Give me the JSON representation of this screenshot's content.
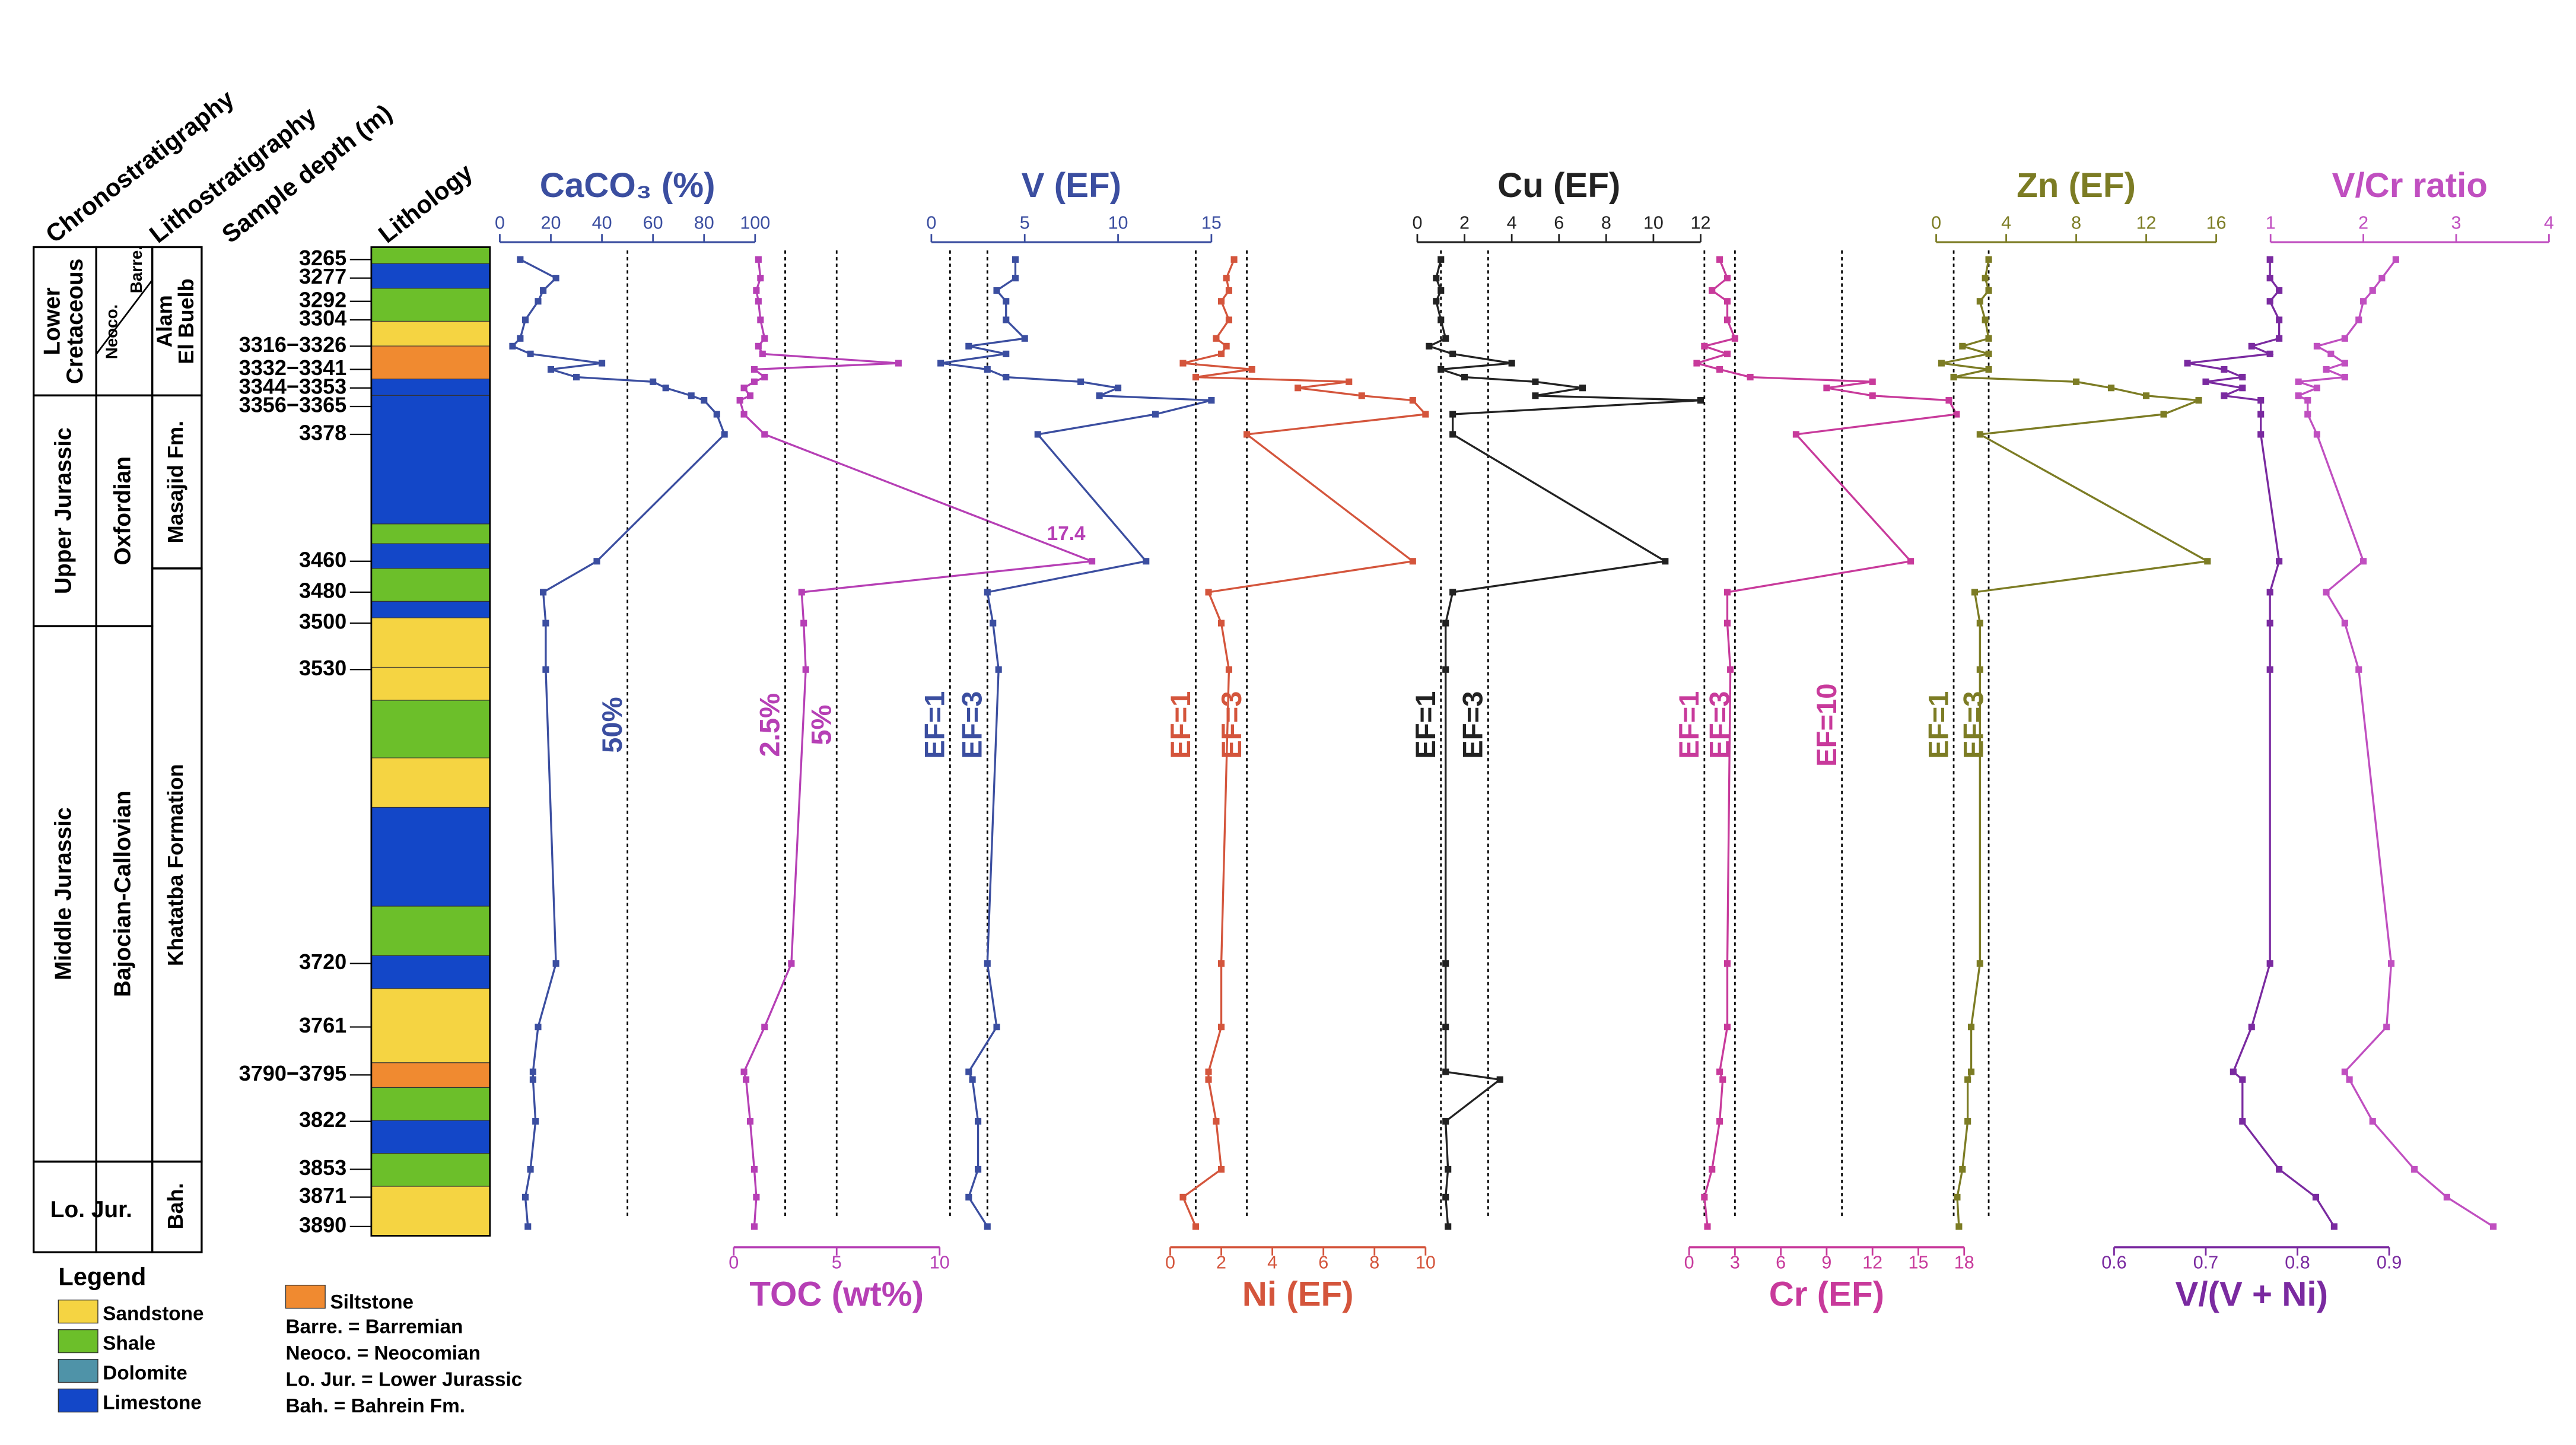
{
  "headers": [
    "Chronostratigraphy",
    "Lithostratigraphy",
    "Sample depth (m)",
    "Lithology"
  ],
  "chronostratigraphy": [
    [
      "Lower",
      "Cretaceous"
    ],
    [
      "Upper Jurassic"
    ],
    [
      "Middle Jurassic"
    ],
    [
      "Lo. Jur."
    ]
  ],
  "stages": [
    "Neoco.",
    "Barre.",
    "Oxfordian",
    "Bajocian-Callovian"
  ],
  "formations": [
    [
      "Alam",
      "El Buelb"
    ],
    [
      "Masajid Fm."
    ],
    [
      "Khatatba Formation"
    ],
    [
      "Bah."
    ]
  ],
  "legend": {
    "title": "Legend",
    "items": [
      "Sandstone",
      "Shale",
      "Dolomite",
      "Limestone",
      "Siltstone"
    ],
    "notes": [
      "Barre. = Barremian",
      "Neoco. = Neocomian",
      "Lo. Jur. = Lower Jurassic",
      "Bah. = Bahrein Fm."
    ]
  },
  "depth": {
    "ylim": [
      3257,
      3897
    ],
    "yticks": [
      3265,
      3277,
      3292,
      3304,
      {
        "value": 3321,
        "label": "3316−3326"
      },
      {
        "value": 3336,
        "label": "3332−3341"
      },
      {
        "value": 3348,
        "label": "3344−3353"
      },
      {
        "value": 3360,
        "label": "3356−3365"
      },
      3378,
      3460,
      3480,
      3500,
      3530,
      3720,
      3761,
      {
        "value": 3792,
        "label": "3790−3795"
      },
      3822,
      3853,
      3871,
      3890
    ],
    "samples": [
      3265,
      3277,
      3285,
      3292,
      3304,
      3316,
      3321,
      3326,
      3332,
      3336,
      3341,
      3344,
      3348,
      3353,
      3356,
      3365,
      3378,
      3460,
      3480,
      3500,
      3530,
      3720,
      3761,
      3790,
      3795,
      3822,
      3853,
      3871,
      3890
    ]
  },
  "chart_data": [
    {
      "type": "line",
      "title": "CaCO₃ (%)",
      "axis": "top",
      "color": "#3b4ea0",
      "xlim": [
        0,
        100
      ],
      "xticks": [
        0,
        20,
        40,
        60,
        80,
        100
      ],
      "refs": [
        {
          "value": 50,
          "label": "50%"
        }
      ],
      "values": [
        8,
        22,
        17,
        15,
        10,
        8,
        5,
        12,
        40,
        20,
        30,
        60,
        65,
        75,
        80,
        85,
        88,
        38,
        17,
        18,
        18,
        22,
        15,
        13,
        13,
        14,
        12,
        10,
        11
      ]
    },
    {
      "type": "line",
      "title": "TOC (wt%)",
      "axis": "bottom",
      "color": "#b63fb5",
      "xlim": [
        0,
        10
      ],
      "xticks": [
        0,
        5,
        10
      ],
      "refs": [
        {
          "value": 2.5,
          "label": "2.5%"
        },
        {
          "value": 5,
          "label": "5%"
        }
      ],
      "values": [
        1.2,
        1.3,
        1.1,
        1.2,
        1.3,
        1.5,
        1.2,
        1.4,
        8,
        1,
        1.5,
        1,
        0.5,
        0.8,
        0.3,
        0.5,
        1.5,
        17.4,
        3.3,
        3.4,
        3.5,
        2.8,
        1.5,
        0.5,
        0.6,
        0.8,
        1,
        1.1,
        1
      ]
    },
    {
      "type": "line",
      "title": "V (EF)",
      "axis": "top",
      "color": "#3b4ea0",
      "xlim": [
        0,
        15
      ],
      "xticks": [
        0,
        5,
        10,
        15
      ],
      "refs": [
        {
          "value": 1,
          "label": "EF=1"
        },
        {
          "value": 3,
          "label": "EF=3"
        }
      ],
      "values": [
        4.5,
        4.5,
        3.5,
        4,
        4,
        5,
        2,
        4,
        0.5,
        3,
        4,
        8,
        10,
        9,
        15,
        12,
        5.7,
        11.5,
        3,
        3.3,
        3.6,
        3,
        3.5,
        2,
        2.2,
        2.5,
        2.5,
        2,
        3
      ]
    },
    {
      "type": "line",
      "title": "Ni (EF)",
      "axis": "bottom",
      "color": "#d4553c",
      "xlim": [
        0,
        10
      ],
      "xticks": [
        0,
        2,
        4,
        6,
        8,
        10
      ],
      "refs": [
        {
          "value": 1,
          "label": "EF=1"
        },
        {
          "value": 3,
          "label": "EF=3"
        }
      ],
      "values": [
        2.5,
        2.2,
        2.3,
        2,
        2.3,
        1.8,
        2.2,
        2,
        0.5,
        3.2,
        1,
        7,
        5,
        7.5,
        9.5,
        10,
        3,
        9.5,
        1.5,
        2,
        2.3,
        2,
        2,
        1.5,
        1.5,
        1.8,
        2,
        0.5,
        1
      ]
    },
    {
      "type": "line",
      "title": "Cu (EF)",
      "axis": "top",
      "color": "#222222",
      "xlim": [
        0,
        12
      ],
      "xticks": [
        0,
        2,
        4,
        6,
        8,
        10,
        12
      ],
      "refs": [
        {
          "value": 1,
          "label": "EF=1"
        },
        {
          "value": 3,
          "label": "EF=3"
        }
      ],
      "values": [
        1,
        0.8,
        1,
        0.8,
        1,
        1.2,
        0.5,
        1.5,
        4,
        1,
        2,
        5,
        7,
        5,
        12,
        1.5,
        1.5,
        10.5,
        1.5,
        1.2,
        1.2,
        1.2,
        1.2,
        1.2,
        3.5,
        1.2,
        1.3,
        1.2,
        1.3
      ]
    },
    {
      "type": "line",
      "title": "Cr (EF)",
      "axis": "bottom",
      "color": "#c83a9b",
      "xlim": [
        0,
        18
      ],
      "xticks": [
        0,
        3,
        6,
        9,
        12,
        15,
        18
      ],
      "refs": [
        {
          "value": 1,
          "label": "EF=1"
        },
        {
          "value": 3,
          "label": "EF=3"
        },
        {
          "value": 10,
          "label": "EF=10"
        }
      ],
      "values": [
        2,
        2.5,
        1.5,
        2.5,
        2.5,
        3,
        1,
        2.5,
        0.5,
        2,
        4,
        12,
        9,
        12,
        17,
        17.5,
        7,
        14.5,
        2.5,
        2.5,
        2.7,
        2.5,
        2.5,
        2,
        2.2,
        2,
        1.5,
        1,
        1.2
      ]
    },
    {
      "type": "line",
      "title": "Zn (EF)",
      "axis": "top",
      "color": "#7c7c24",
      "xlim": [
        0,
        16
      ],
      "xticks": [
        0,
        4,
        8,
        12,
        16
      ],
      "refs": [
        {
          "value": 1,
          "label": "EF=1"
        },
        {
          "value": 3,
          "label": "EF=3"
        }
      ],
      "values": [
        3,
        2.8,
        3,
        2.5,
        2.8,
        3,
        1.5,
        3,
        0.3,
        3,
        1,
        8,
        10,
        12,
        15,
        13,
        2.5,
        15.5,
        2.2,
        2.5,
        2.5,
        2.5,
        2,
        2,
        1.8,
        1.8,
        1.5,
        1.2,
        1.3
      ]
    },
    {
      "type": "line",
      "title": "V/Cr ratio",
      "axis": "top",
      "color": "#c04fc0",
      "xlim": [
        1,
        4
      ],
      "xticks": [
        1,
        2,
        3,
        4
      ],
      "refs": [],
      "values": [
        2.35,
        2.2,
        2.1,
        2,
        1.95,
        1.8,
        1.5,
        1.65,
        1.8,
        1.6,
        1.8,
        1.3,
        1.5,
        1.3,
        1.4,
        1.4,
        1.5,
        2,
        1.6,
        1.8,
        1.95,
        2.3,
        2.25,
        1.8,
        1.85,
        2.1,
        2.55,
        2.9,
        3.4
      ]
    },
    {
      "type": "line",
      "title": "V/(V + Ni)",
      "axis": "bottom",
      "color": "#7a2aa0",
      "xlim": [
        0.6,
        0.9
      ],
      "xticks": [
        0.6,
        0.7,
        0.8,
        0.9
      ],
      "refs": [],
      "values": [
        0.77,
        0.77,
        0.78,
        0.77,
        0.78,
        0.78,
        0.75,
        0.77,
        0.68,
        0.72,
        0.74,
        0.7,
        0.74,
        0.72,
        0.76,
        0.76,
        0.76,
        0.78,
        0.77,
        0.77,
        0.77,
        0.77,
        0.75,
        0.73,
        0.74,
        0.74,
        0.78,
        0.82,
        0.84
      ]
    }
  ]
}
